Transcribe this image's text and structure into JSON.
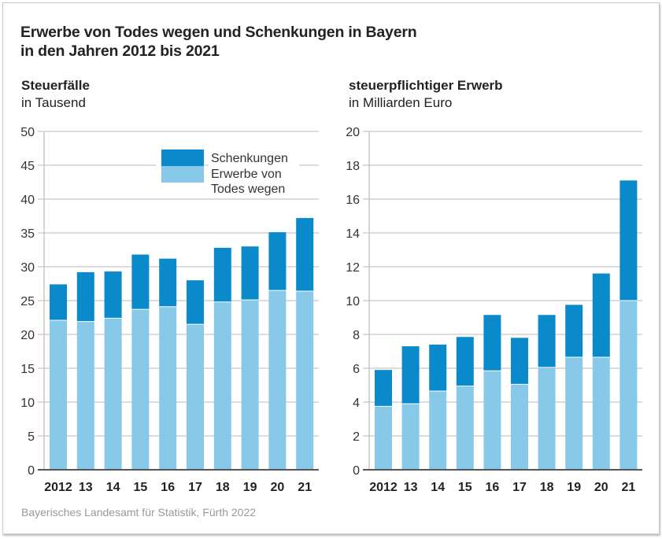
{
  "title_line1": "Erwerbe von Todes wegen und Schenkungen in Bayern",
  "title_line2": "in den Jahren 2012 bis 2021",
  "source": "Bayerisches Landesamt für Statistik, Fürth 2022",
  "colors": {
    "schenkungen": "#0a8acb",
    "erwerbe": "#88c8e8",
    "grid": "#c8c8c8",
    "axis": "#555555"
  },
  "chart_data": [
    {
      "type": "bar",
      "stacked": true,
      "title": "Steuerfälle",
      "unit": "in Tausend",
      "categories": [
        "2012",
        "13",
        "14",
        "15",
        "16",
        "17",
        "18",
        "19",
        "20",
        "21"
      ],
      "ylim": [
        0,
        50
      ],
      "yticks": [
        0,
        5,
        10,
        15,
        20,
        25,
        30,
        35,
        40,
        45,
        50
      ],
      "grid": true,
      "legend": {
        "placement": "top-right",
        "entries": [
          {
            "label_line1": "Schenkungen",
            "label_line2": ""
          },
          {
            "label_line1": "Erwerbe von",
            "label_line2": "Todes wegen"
          }
        ]
      },
      "series": [
        {
          "name": "Erwerbe von Todes wegen",
          "values": [
            22.1,
            21.9,
            22.4,
            23.7,
            24.1,
            21.5,
            24.8,
            25.1,
            26.5,
            26.4
          ]
        },
        {
          "name": "Schenkungen",
          "values": [
            5.3,
            7.3,
            6.9,
            8.1,
            7.1,
            6.5,
            8.0,
            7.9,
            8.6,
            10.8
          ]
        }
      ]
    },
    {
      "type": "bar",
      "stacked": true,
      "title": "steuerpflichtiger Erwerb",
      "unit": "in Milliarden Euro",
      "categories": [
        "2012",
        "13",
        "14",
        "15",
        "16",
        "17",
        "18",
        "19",
        "20",
        "21"
      ],
      "ylim": [
        0,
        20
      ],
      "yticks": [
        0,
        2,
        4,
        6,
        8,
        10,
        12,
        14,
        16,
        18,
        20
      ],
      "grid": true,
      "series": [
        {
          "name": "Erwerbe von Todes wegen",
          "values": [
            3.75,
            3.9,
            4.65,
            4.95,
            5.85,
            5.05,
            6.05,
            6.65,
            6.65,
            10.0
          ]
        },
        {
          "name": "Schenkungen",
          "values": [
            2.15,
            3.4,
            2.75,
            2.9,
            3.3,
            2.75,
            3.1,
            3.1,
            4.95,
            7.1
          ]
        }
      ]
    }
  ]
}
